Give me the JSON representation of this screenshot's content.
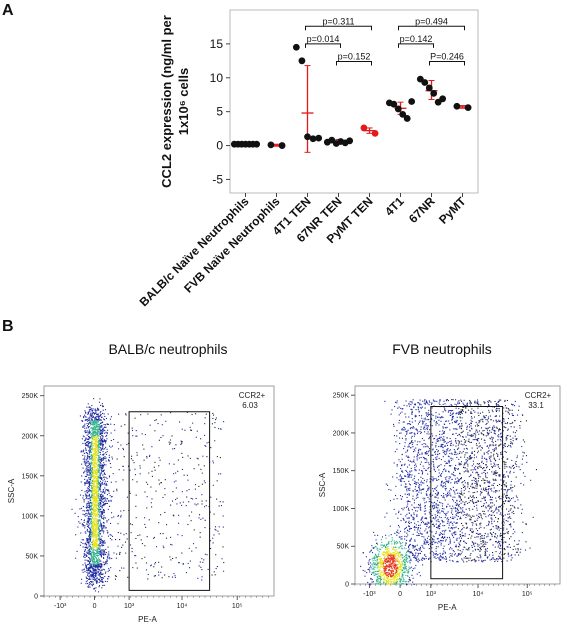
{
  "panels": {
    "a_letter": "A",
    "b_letter": "B"
  },
  "colors": {
    "point": "#111111",
    "errorbar": "#e31a1c",
    "median": "#e31a1c",
    "gate": "#111111",
    "density_low": "#1f2aa0",
    "density_mid": "#33b38a",
    "density_high": "#e8e21a",
    "density_peak": "#e63b1f"
  },
  "chart_data": [
    {
      "type": "scatter",
      "ylabel": "CCL2 expression (ng/ml per 1x10⁶ cells",
      "ylim": [
        -7,
        20
      ],
      "yticks": [
        -5,
        0,
        5,
        10,
        15
      ],
      "categories": [
        "BALB/c Naïve Neutrophils",
        "FVB  Naïve Neutrophils",
        "4T1 TEN",
        "67NR TEN",
        "PyMT TEN",
        "4T1",
        "67NR",
        "PyMT"
      ],
      "series": [
        {
          "category": "BALB/c Naïve Neutrophils",
          "values": [
            0.2,
            0.2,
            0.2,
            0.2,
            0.2,
            0.2,
            0.2
          ],
          "color": "#111111"
        },
        {
          "category": "FVB  Naïve Neutrophils",
          "values": [
            0.1,
            0.0
          ],
          "color": "#111111"
        },
        {
          "category": "4T1 TEN",
          "values": [
            14.5,
            12.5,
            1.3,
            1.0,
            1.1
          ],
          "color": "#111111"
        },
        {
          "category": "67NR TEN",
          "values": [
            0.5,
            0.8,
            0.3,
            0.6,
            0.4,
            0.7
          ],
          "color": "#111111"
        },
        {
          "category": "PyMT TEN",
          "values": [
            2.6,
            1.8
          ],
          "color": "#e31a1c"
        },
        {
          "category": "4T1",
          "values": [
            6.3,
            6.1,
            5.4,
            4.6,
            4.0,
            6.5
          ],
          "color": "#111111"
        },
        {
          "category": "67NR",
          "values": [
            9.8,
            9.3,
            8.5,
            7.7,
            6.4,
            6.9
          ],
          "color": "#111111"
        },
        {
          "category": "PyMT",
          "values": [
            5.8,
            5.6
          ],
          "color": "#111111"
        }
      ],
      "summary": [
        {
          "category": "BALB/c Naïve Neutrophils",
          "center": 0.2,
          "low": 0.1,
          "high": 0.3
        },
        {
          "category": "FVB  Naïve Neutrophils",
          "center": 0.05,
          "low": -0.1,
          "high": 0.2
        },
        {
          "category": "4T1 TEN",
          "center": 4.8,
          "low": -1.0,
          "high": 11.8
        },
        {
          "category": "67NR TEN",
          "center": 0.55,
          "low": 0.2,
          "high": 0.9
        },
        {
          "category": "PyMT TEN",
          "center": 2.2,
          "low": 1.8,
          "high": 2.6
        },
        {
          "category": "4T1",
          "center": 5.5,
          "low": 4.6,
          "high": 6.4
        },
        {
          "category": "67NR",
          "center": 8.1,
          "low": 6.8,
          "high": 9.6
        },
        {
          "category": "PyMT",
          "center": 5.7,
          "low": 5.5,
          "high": 5.9
        }
      ],
      "annotations": [
        {
          "text": "p=0.311",
          "from": "4T1 TEN",
          "to": "PyMT TEN",
          "y": 17.6
        },
        {
          "text": "p=0.014",
          "from": "4T1 TEN",
          "to": "67NR TEN",
          "y": 15.0
        },
        {
          "text": "p=0.152",
          "from": "67NR TEN",
          "to": "PyMT TEN",
          "y": 12.4
        },
        {
          "text": "p=0.494",
          "from": "4T1",
          "to": "PyMT",
          "y": 17.6
        },
        {
          "text": "p=0.142",
          "from": "4T1",
          "to": "67NR",
          "y": 15.0
        },
        {
          "text": "P=0.246",
          "from": "67NR",
          "to": "PyMT",
          "y": 12.4
        }
      ]
    },
    {
      "type": "scatter",
      "title": "BALB/c neutrophils",
      "xlabel": "PE-A",
      "ylabel": "SSC-A",
      "xticks": [
        "-10³",
        "0",
        "10³",
        "10⁴",
        "10⁵"
      ],
      "yticks": [
        "0",
        "50K",
        "100K",
        "150K",
        "200K",
        "250K"
      ],
      "ylim": [
        0,
        262144
      ],
      "gate": {
        "name": "CCR2+",
        "percent": "6.03",
        "x_range": [
          "10³",
          "10⁴·⁵"
        ],
        "y_range": [
          7000,
          230000
        ]
      }
    },
    {
      "type": "scatter",
      "title": "FVB neutrophils",
      "xlabel": "PE-A",
      "ylabel": "SSC-A",
      "xticks": [
        "-10³",
        "0",
        "10³",
        "10⁴",
        "10⁵"
      ],
      "yticks": [
        "0",
        "50K",
        "100K",
        "150K",
        "200K",
        "250K"
      ],
      "ylim": [
        0,
        262144
      ],
      "gate": {
        "name": "CCR2+",
        "percent": "33.1",
        "x_range": [
          "10³",
          "10⁴·⁵"
        ],
        "y_range": [
          7000,
          235000
        ]
      }
    }
  ]
}
